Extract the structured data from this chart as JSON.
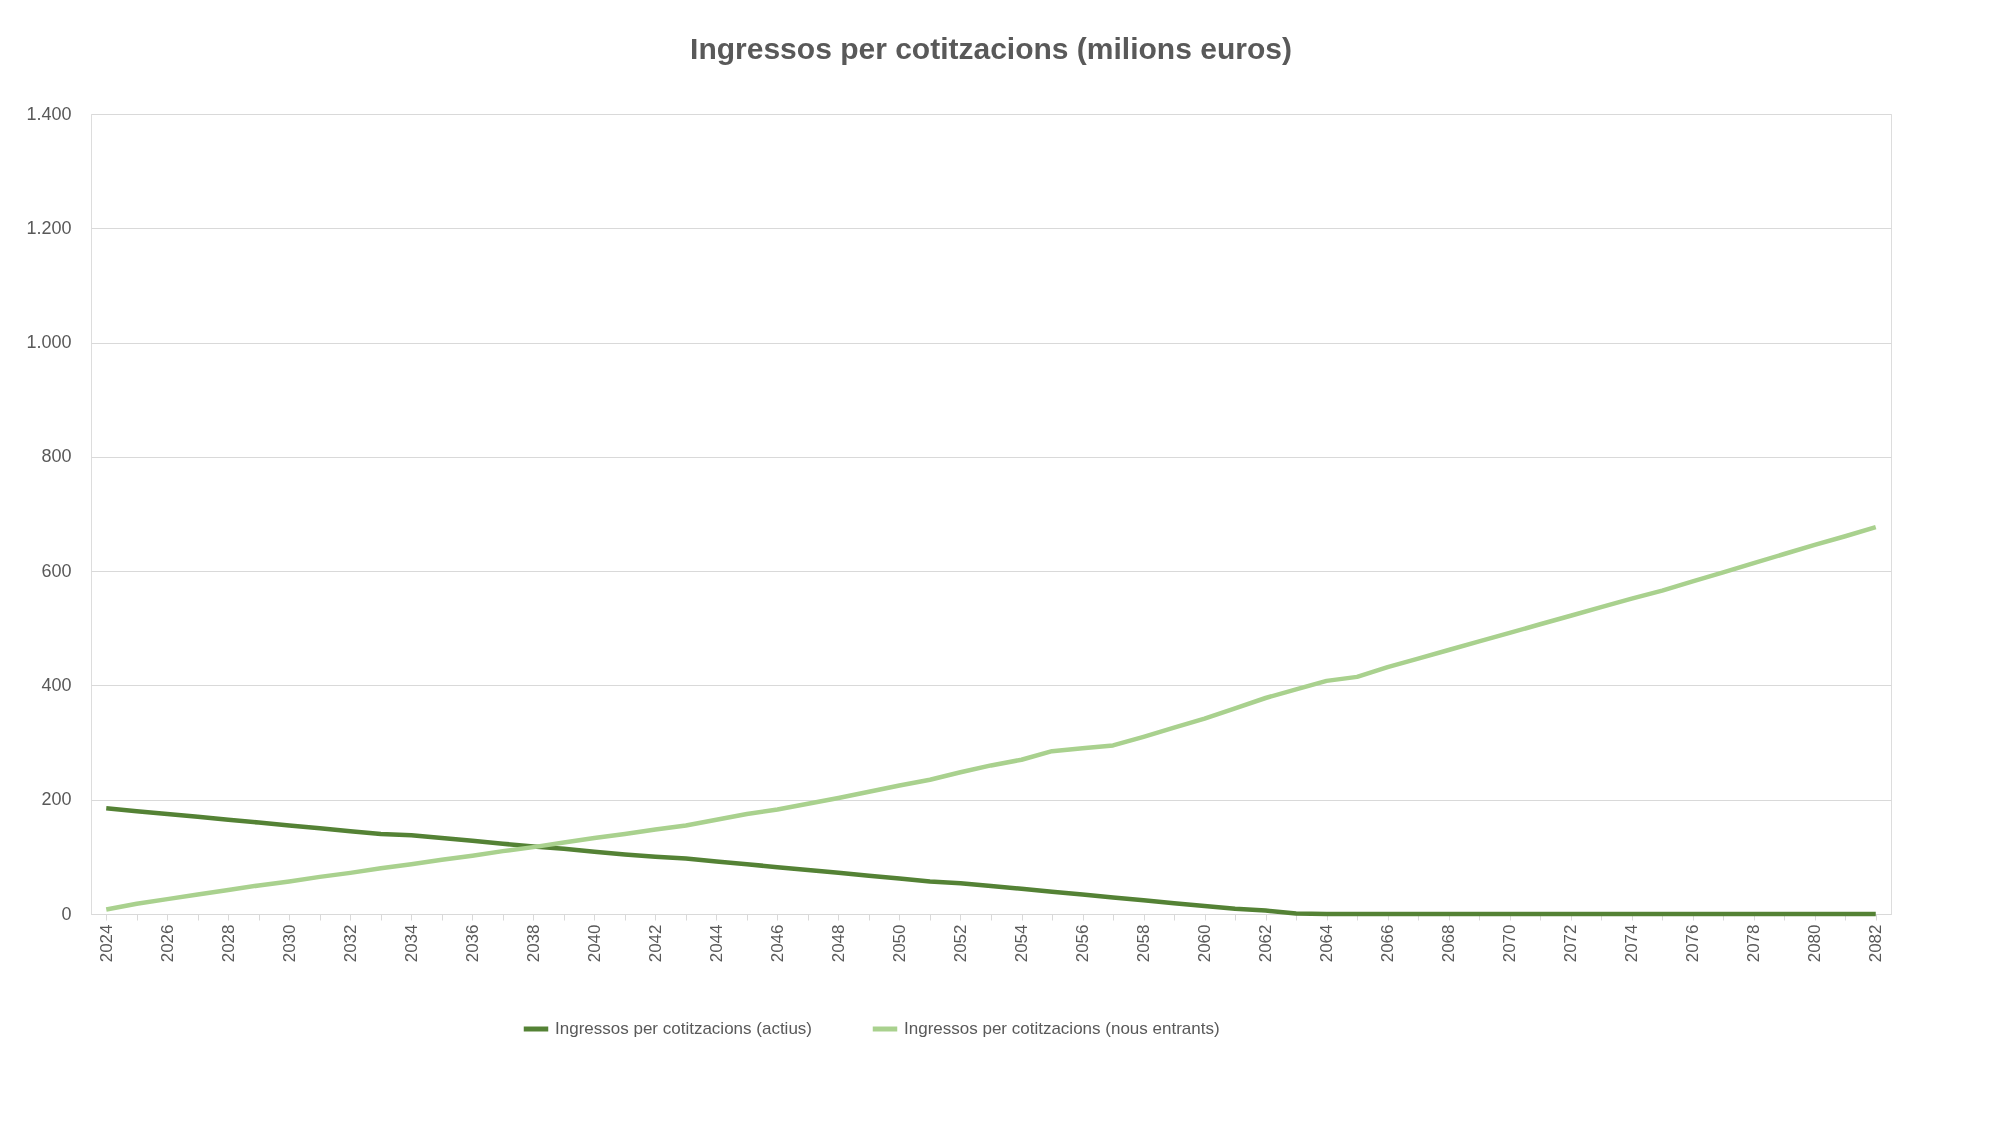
{
  "chart_data": {
    "type": "line",
    "title": "Ingressos per cotitzacions (milions euros)",
    "categories": [
      "2024",
      null,
      "2026",
      null,
      "2028",
      null,
      "2030",
      null,
      "2032",
      null,
      "2034",
      null,
      "2036",
      null,
      "2038",
      null,
      "2040",
      null,
      "2042",
      null,
      "2044",
      null,
      "2046",
      null,
      "2048",
      null,
      "2050",
      null,
      "2052",
      null,
      "2054",
      null,
      "2056",
      null,
      "2058",
      null,
      "2060",
      null,
      "2062",
      null,
      "2064",
      null,
      "2066",
      null,
      "2068",
      null,
      "2070",
      null,
      "2072",
      null,
      "2074",
      null,
      "2076",
      null,
      "2078",
      null,
      "2080",
      null,
      "2082"
    ],
    "series": [
      {
        "name": "Ingressos per cotitzacions (actius)",
        "color": "#548235",
        "values": [
          185,
          180,
          175,
          170,
          165,
          160,
          155,
          150,
          145,
          140,
          138,
          133,
          128,
          123,
          118,
          114,
          109,
          104,
          100,
          97,
          92,
          87,
          82,
          77,
          72,
          67,
          62,
          57,
          54,
          49,
          44,
          39,
          34,
          29,
          24,
          19,
          14,
          9,
          6,
          1,
          0,
          0,
          0,
          0,
          0,
          0,
          0,
          0,
          0,
          0,
          0,
          0,
          0,
          0,
          0,
          0,
          0,
          0,
          0
        ]
      },
      {
        "name": "Ingressos per cotitzacions (nous entrants)",
        "color": "#a9d18e",
        "values": [
          8,
          18,
          26,
          34,
          42,
          50,
          57,
          65,
          72,
          80,
          87,
          95,
          102,
          110,
          117,
          125,
          133,
          140,
          148,
          155,
          165,
          175,
          183,
          193,
          203,
          214,
          225,
          235,
          248,
          260,
          270,
          285,
          290,
          295,
          310,
          326,
          342,
          360,
          378,
          393,
          408,
          415,
          432,
          447,
          462,
          477,
          492,
          507,
          522,
          537,
          552,
          566,
          582,
          598,
          614,
          630,
          646,
          661,
          677
        ]
      }
    ],
    "ylim": [
      0,
      1400
    ],
    "yticks": [
      0,
      200,
      400,
      600,
      800,
      {
        "value": 1000,
        "label": "1.000"
      },
      {
        "value": 1200,
        "label": "1.200"
      },
      {
        "value": 1400,
        "label": "1.400"
      }
    ],
    "grid": "y",
    "legend": "bottom",
    "line_style": "solid",
    "marker": "none"
  }
}
